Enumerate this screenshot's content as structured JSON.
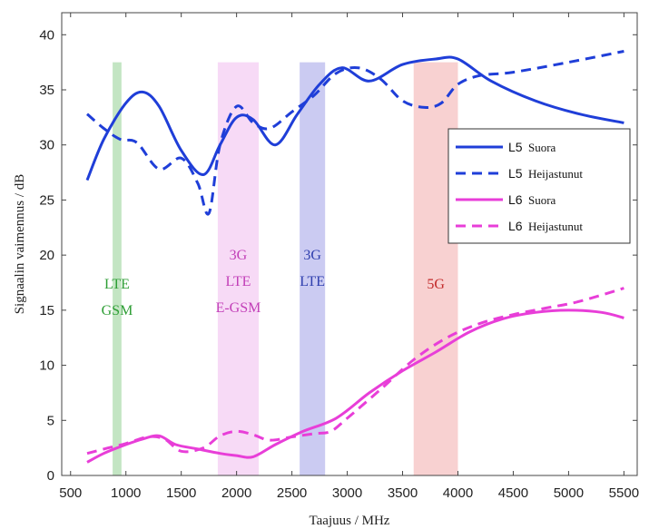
{
  "chart_data": {
    "type": "line",
    "xlabel": "Taajuus / MHz",
    "ylabel": "Signaalin vaimennus / dB",
    "xlim": [
      650,
      5500
    ],
    "ylim": [
      0,
      42
    ],
    "xticks": [
      500,
      1000,
      1500,
      2000,
      2500,
      3000,
      3500,
      4000,
      4500,
      5000,
      5500
    ],
    "yticks": [
      0,
      5,
      10,
      15,
      20,
      25,
      30,
      35,
      40
    ],
    "grid": false,
    "legend_position": "right",
    "bands": [
      {
        "x0": 880,
        "x1": 960,
        "y_top": 37.5,
        "color": "#9bd49b",
        "labels": [
          "LTE",
          "GSM"
        ],
        "label_color": "#2e9e35"
      },
      {
        "x0": 1830,
        "x1": 2200,
        "y_top": 37.5,
        "color": "#f2c2f0",
        "labels": [
          "3G",
          "LTE",
          "E-GSM"
        ],
        "label_color": "#c23fb8"
      },
      {
        "x0": 2570,
        "x1": 2800,
        "y_top": 37.5,
        "color": "#a8a8ea",
        "labels": [
          "3G",
          "LTE"
        ],
        "label_color": "#2f3fae"
      },
      {
        "x0": 3600,
        "x1": 4000,
        "y_top": 37.5,
        "color": "#f3b3b3",
        "labels": [
          "5G"
        ],
        "label_color": "#c22a2a"
      }
    ],
    "series": [
      {
        "name": "Suora",
        "legend_code": "L5",
        "color": "#1f3ed8",
        "dash": "solid",
        "x": [
          650,
          800,
          1000,
          1150,
          1300,
          1500,
          1700,
          1850,
          2000,
          2150,
          2350,
          2550,
          2750,
          2950,
          3200,
          3500,
          3800,
          4000,
          4300,
          4700,
          5100,
          5500
        ],
        "y": [
          26.8,
          30.5,
          33.8,
          34.8,
          33.5,
          29.5,
          27.3,
          30.0,
          32.5,
          32.3,
          30.0,
          32.8,
          35.5,
          37.0,
          35.8,
          37.3,
          37.8,
          37.8,
          35.8,
          34.0,
          32.8,
          32.0
        ]
      },
      {
        "name": "Heijastunut",
        "legend_code": "L5",
        "color": "#1f3ed8",
        "dash": "dashed",
        "x": [
          650,
          800,
          950,
          1100,
          1300,
          1500,
          1650,
          1750,
          1850,
          2000,
          2150,
          2300,
          2500,
          2700,
          2900,
          3100,
          3300,
          3500,
          3700,
          3850,
          4000,
          4200,
          4500,
          5000,
          5500
        ],
        "y": [
          32.8,
          31.5,
          30.5,
          30.2,
          27.8,
          28.8,
          26.5,
          23.8,
          30.0,
          33.5,
          32.0,
          31.5,
          33.0,
          34.5,
          36.5,
          37.0,
          36.0,
          34.0,
          33.4,
          33.8,
          35.5,
          36.3,
          36.6,
          37.5,
          38.5
        ]
      },
      {
        "name": "Suora",
        "legend_code": "L6",
        "color": "#e83ed8",
        "dash": "solid",
        "x": [
          650,
          800,
          1000,
          1150,
          1300,
          1450,
          1650,
          1850,
          2000,
          2150,
          2350,
          2600,
          2900,
          3200,
          3500,
          3800,
          4100,
          4400,
          4700,
          5000,
          5300,
          5500
        ],
        "y": [
          1.2,
          2.0,
          2.8,
          3.3,
          3.6,
          2.8,
          2.4,
          2.0,
          1.8,
          1.7,
          2.8,
          4.0,
          5.2,
          7.5,
          9.5,
          11.2,
          13.0,
          14.2,
          14.8,
          15.0,
          14.8,
          14.3
        ]
      },
      {
        "name": "Heijastunut",
        "legend_code": "L6",
        "color": "#e83ed8",
        "dash": "dashed",
        "x": [
          650,
          800,
          1000,
          1200,
          1350,
          1500,
          1700,
          1850,
          2000,
          2150,
          2300,
          2500,
          2700,
          2850,
          3000,
          3300,
          3600,
          3900,
          4200,
          4500,
          4800,
          5100,
          5500
        ],
        "y": [
          2.0,
          2.4,
          2.9,
          3.5,
          3.3,
          2.2,
          2.5,
          3.6,
          4.0,
          3.7,
          3.2,
          3.5,
          3.8,
          4.0,
          5.2,
          7.8,
          10.5,
          12.5,
          13.8,
          14.6,
          15.2,
          15.8,
          17.0
        ]
      }
    ]
  }
}
